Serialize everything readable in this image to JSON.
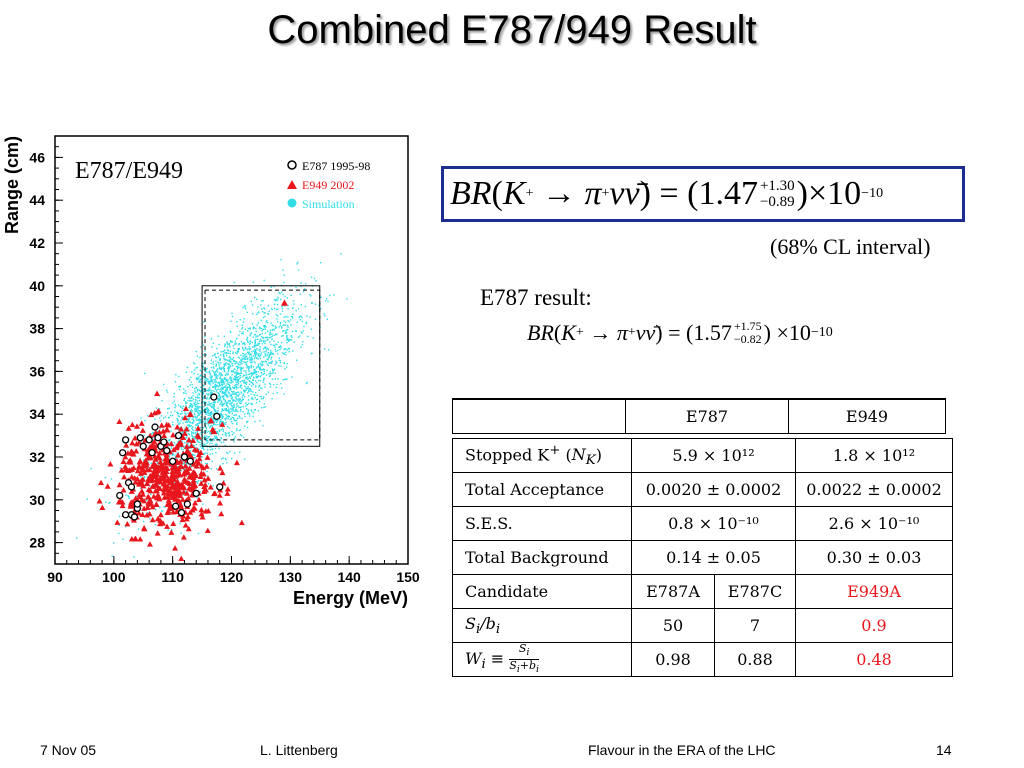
{
  "slide": {
    "title": "Combined E787/949 Result",
    "footer": {
      "date": "7 Nov 05",
      "author": "L. Littenberg",
      "event": "Flavour in the ERA of the LHC",
      "page": "14"
    }
  },
  "formula_main": {
    "lhs_BR": "BR",
    "lhs_K": "K",
    "arrow": "→",
    "pi": "π",
    "nu": "νν̄",
    "value": "1.47",
    "plus": "+1.30",
    "minus": "−0.89",
    "times": "×10",
    "exp": "−10"
  },
  "cl_text": "(68% CL interval)",
  "e787_label": "E787 result:",
  "formula_e787": {
    "value": "1.57",
    "plus": "+1.75",
    "minus": "−0.82",
    "times": "×10",
    "exp": "−10"
  },
  "table": {
    "headers": [
      "E787",
      "E949"
    ],
    "rows": [
      {
        "label": "Stopped K⁺ (N_K)",
        "values": [
          "5.9 × 10¹²",
          "1.8 × 10¹²"
        ]
      },
      {
        "label": "Total Acceptance",
        "values": [
          "0.0020 ± 0.0002",
          "0.0022 ± 0.0002"
        ]
      },
      {
        "label": "S.E.S.",
        "values": [
          "0.8 × 10⁻¹⁰",
          "2.6 × 10⁻¹⁰"
        ]
      },
      {
        "label": "Total Background",
        "values": [
          "0.14 ± 0.05",
          "0.30 ± 0.03"
        ]
      },
      {
        "label": "Candidate",
        "values": [
          "E787A",
          "E787C",
          "E949A"
        ]
      },
      {
        "label": "S_i/b_i",
        "values": [
          "50",
          "7",
          "0.9"
        ]
      },
      {
        "label": "W_i ≡ S_i/(S_i+b_i)",
        "values": [
          "0.98",
          "0.88",
          "0.48"
        ]
      }
    ]
  },
  "colors": {
    "e949": "#e8171d",
    "simulation": "#33dde8",
    "formula_box": "#1c2d8f"
  },
  "chart_data": {
    "type": "scatter",
    "title": "E787/E949",
    "xlabel": "Energy (MeV)",
    "ylabel": "Range (cm)",
    "xlim": [
      90,
      150
    ],
    "ylim": [
      27,
      47
    ],
    "xticks": [
      90,
      100,
      110,
      120,
      130,
      140,
      150
    ],
    "yticks": [
      28,
      30,
      32,
      34,
      36,
      38,
      40,
      42,
      44,
      46
    ],
    "legend": [
      "E787 1995-98",
      "E949 2002",
      "Simulation"
    ],
    "legend_position": "top-right",
    "series": [
      {
        "name": "E787 1995-98",
        "marker": "open-circle",
        "x": [
          101,
          102,
          101.5,
          103,
          104,
          103.5,
          102.5,
          104.5,
          105,
          106,
          106.5,
          107,
          107.5,
          108,
          108.5,
          109,
          110,
          111,
          112,
          113,
          114,
          112.5,
          111.5,
          103,
          104,
          102,
          110.5,
          117,
          117.5,
          118
        ],
        "y": [
          30.2,
          32.8,
          32.2,
          29.3,
          29.6,
          29.2,
          30.8,
          32.9,
          32.5,
          32.8,
          32.2,
          33.4,
          32.9,
          32.5,
          32.7,
          32.3,
          31.8,
          33,
          32,
          31.8,
          30.3,
          29.8,
          29.4,
          30.6,
          29.8,
          29.3,
          29.7,
          34.8,
          33.9,
          30.6
        ]
      },
      {
        "name": "E949 2002",
        "marker": "filled-triangle",
        "x": [
          129,
          113,
          117,
          116.5
        ],
        "y": [
          39.2,
          34,
          33.2,
          33.7
        ],
        "cluster_center": [
          109,
          31
        ],
        "cluster_spread": [
          4,
          1.2
        ]
      },
      {
        "name": "Simulation",
        "marker": "dot",
        "cluster_center": [
          118,
          34.8
        ],
        "cluster_spread": [
          6.5,
          2.4
        ]
      }
    ],
    "signal_boxes": [
      {
        "x": [
          115,
          135
        ],
        "y": [
          32.5,
          40
        ]
      },
      {
        "x": [
          115.5,
          135
        ],
        "y": [
          32.8,
          39.8
        ],
        "style": "dashed"
      }
    ]
  }
}
